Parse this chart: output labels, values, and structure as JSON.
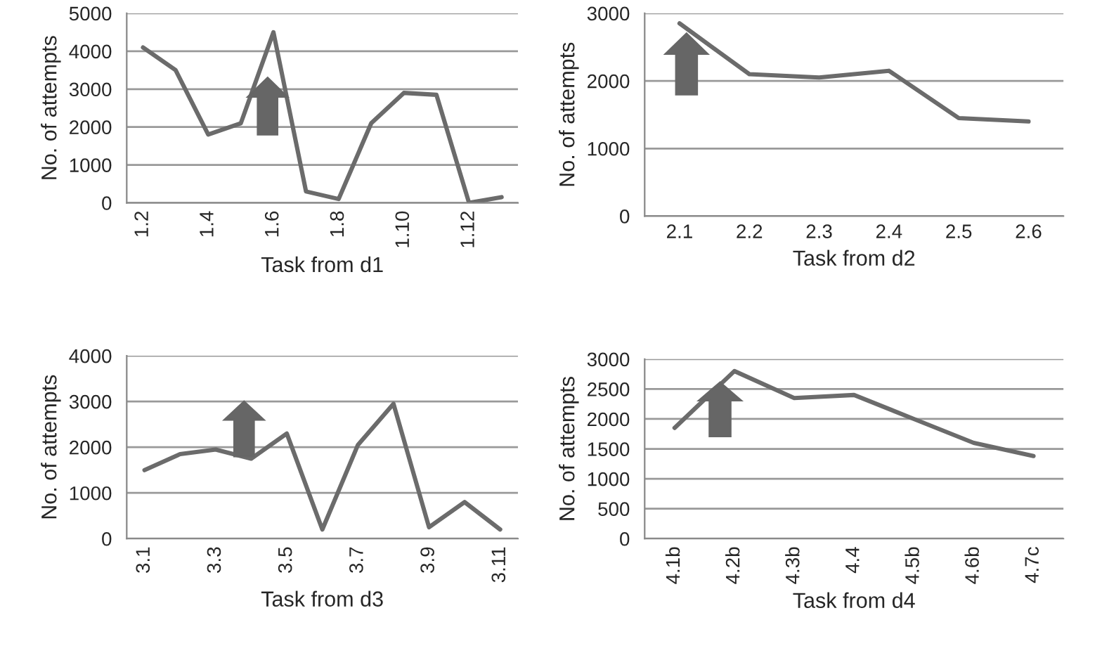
{
  "chart_data": [
    {
      "type": "line",
      "xlabel": "Task from d1",
      "ylabel": "No. of attempts",
      "categories": [
        "1.2",
        null,
        "1.4",
        null,
        "1.6",
        null,
        "1.8",
        null,
        "1.10",
        null,
        "1.12",
        null
      ],
      "series": [
        {
          "color": "#6b6b6b",
          "values": [
            4100,
            3500,
            1800,
            2100,
            4500,
            300,
            100,
            2100,
            2900,
            2850,
            0,
            150
          ]
        }
      ],
      "ylim": [
        0,
        5000
      ],
      "yticks": [
        0,
        1000,
        2000,
        3000,
        4000,
        5000
      ],
      "grid": "y",
      "legend": false,
      "marker": "none",
      "line_style": "solid"
    },
    {
      "type": "line",
      "xlabel": "Task from d2",
      "ylabel": "No. of attempts",
      "categories": [
        "2.1",
        "2.2",
        "2.3",
        "2.4",
        "2.5",
        "2.6"
      ],
      "series": [
        {
          "color": "#6b6b6b",
          "values": [
            2850,
            2100,
            2050,
            2150,
            1450,
            1400
          ]
        }
      ],
      "ylim": [
        0,
        3000
      ],
      "yticks": [
        0,
        1000,
        2000,
        3000
      ],
      "grid": "y",
      "legend": false,
      "marker": "none",
      "line_style": "solid"
    },
    {
      "type": "line",
      "xlabel": "Task from d3",
      "ylabel": "No. of attempts",
      "categories": [
        "3.1",
        null,
        "3.3",
        null,
        "3.5",
        null,
        "3.7",
        null,
        "3.9",
        null,
        "3.11"
      ],
      "series": [
        {
          "color": "#6b6b6b",
          "values": [
            1500,
            1850,
            1950,
            1750,
            2300,
            200,
            2050,
            2950,
            250,
            800,
            200
          ]
        }
      ],
      "ylim": [
        0,
        4000
      ],
      "yticks": [
        0,
        1000,
        2000,
        3000,
        4000
      ],
      "grid": "y",
      "legend": false,
      "marker": "none",
      "line_style": "solid"
    },
    {
      "type": "line",
      "xlabel": "Task from d4",
      "ylabel": "No. of attempts",
      "categories": [
        "4.1b",
        "4.2b",
        "4.3b",
        "4.4",
        "4.5b",
        "4.6b",
        "4.7c"
      ],
      "series": [
        {
          "color": "#6b6b6b",
          "values": [
            1850,
            2800,
            2350,
            2400,
            2000,
            1600,
            1380
          ]
        }
      ],
      "ylim": [
        0,
        3000
      ],
      "yticks": [
        0,
        500,
        1000,
        1500,
        2000,
        2500,
        3000
      ],
      "grid": "y",
      "legend": false,
      "marker": "none",
      "line_style": "solid"
    }
  ]
}
